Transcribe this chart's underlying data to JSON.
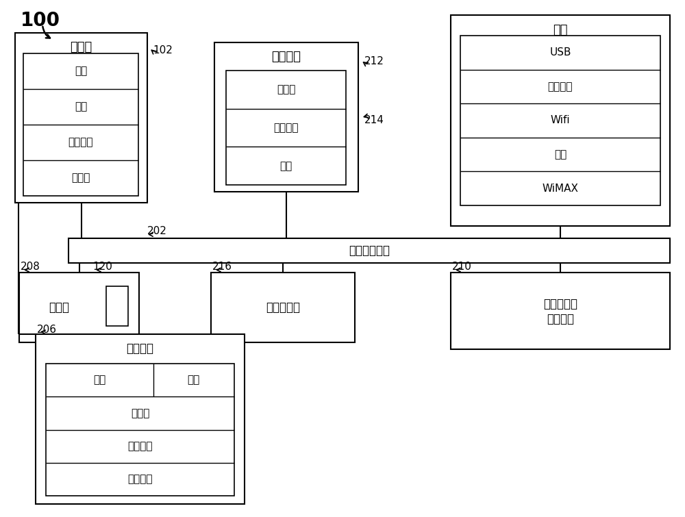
{
  "bg_color": "#ffffff",
  "line_color": "#000000",
  "text_color": "#000000",
  "fig_width": 10.0,
  "fig_height": 7.55,
  "label_100": "100",
  "label_102": "102",
  "label_202": "202",
  "label_206": "206",
  "label_208": "208",
  "label_120": "120",
  "label_210": "210",
  "label_212": "212",
  "label_214": "214",
  "label_216": "216",
  "sensor_title": "传感器",
  "sensor_items": [
    "声纳",
    "雷达",
    "激光雷达",
    "摄像机"
  ],
  "ui_title": "用户界面",
  "ui_items": [
    "显示器",
    "输入设备",
    "音频"
  ],
  "comm_title": "通信",
  "comm_items": [
    "USB",
    "蜂窝通信",
    "Wifi",
    "蓝牙",
    "WiMAX"
  ],
  "bus_label": "车辆数据总线",
  "storage_title": "存储器",
  "disk_title": "磁盘驱动器",
  "processor_line1": "数据处理器",
  "processor_line2": "或控制器",
  "drive_title": "驱动装置",
  "drive_items_left": [
    "马达",
    "发动机",
    "转向系统",
    "制动系统"
  ],
  "drive_item_right": "电池"
}
